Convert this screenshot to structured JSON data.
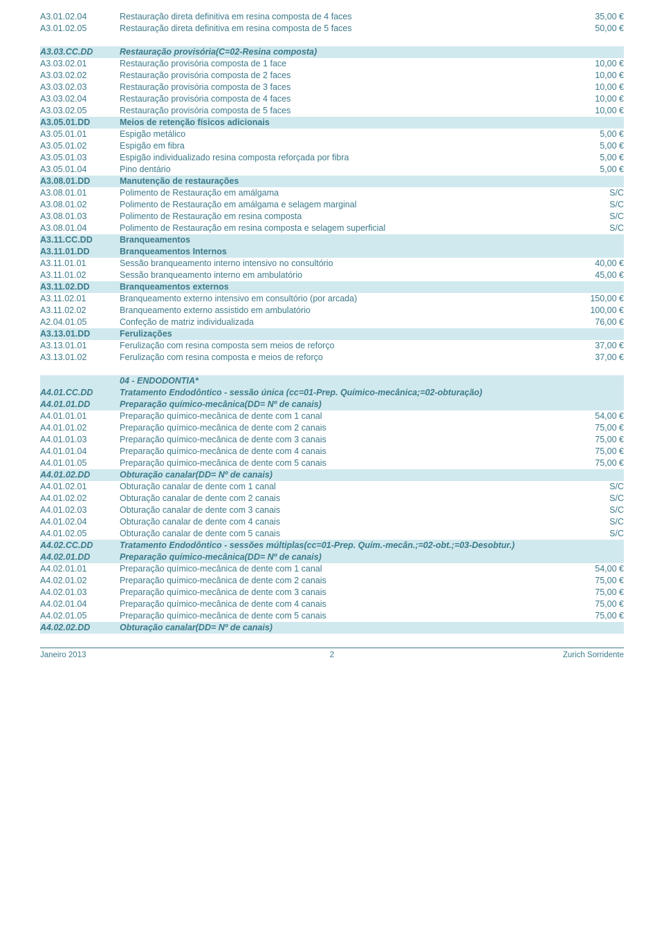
{
  "colors": {
    "text": "#3c7a8a",
    "header_bg": "#d0e9ee",
    "bg": "#ffffff",
    "font_family": "Verdana, Arial, sans-serif",
    "font_size_pt": 9.5
  },
  "blocks": [
    {
      "rows": [
        {
          "style": "",
          "code": "A3.01.02.04",
          "desc": "Restauração direta definitiva em resina composta de 4 faces",
          "price": "35,00 €"
        },
        {
          "style": "",
          "code": "A3.01.02.05",
          "desc": "Restauração direta definitiva em resina composta de 5 faces",
          "price": "50,00 €"
        }
      ]
    },
    {
      "rows": [
        {
          "style": "hdr ital",
          "code": "A3.03.CC.DD",
          "desc": "Restauração provisória(C=02-Resina composta)",
          "price": ""
        },
        {
          "style": "",
          "code": "A3.03.02.01",
          "desc": "Restauração provisória composta de 1 face",
          "price": "10,00 €"
        },
        {
          "style": "",
          "code": "A3.03.02.02",
          "desc": "Restauração provisória composta de 2 faces",
          "price": "10,00 €"
        },
        {
          "style": "",
          "code": "A3.03.02.03",
          "desc": "Restauração provisória composta de 3 faces",
          "price": "10,00 €"
        },
        {
          "style": "",
          "code": "A3.03.02.04",
          "desc": "Restauração provisória composta de 4 faces",
          "price": "10,00 €"
        },
        {
          "style": "",
          "code": "A3.03.02.05",
          "desc": "Restauração provisória composta de 5 faces",
          "price": "10,00 €"
        },
        {
          "style": "hdr",
          "code": "A3.05.01.DD",
          "desc": "Meios de retenção físicos adicionais",
          "price": ""
        },
        {
          "style": "",
          "code": "A3.05.01.01",
          "desc": "Espigão metálico",
          "price": "5,00 €"
        },
        {
          "style": "",
          "code": "A3.05.01.02",
          "desc": "Espigão em fibra",
          "price": "5,00 €"
        },
        {
          "style": "",
          "code": "A3.05.01.03",
          "desc": "Espigão individualizado resina composta reforçada por fibra",
          "price": "5,00 €"
        },
        {
          "style": "",
          "code": "A3.05.01.04",
          "desc": "Pino dentário",
          "price": "5,00 €"
        },
        {
          "style": "hdr",
          "code": "A3.08.01.DD",
          "desc": "Manutenção de restaurações",
          "price": ""
        },
        {
          "style": "",
          "code": "A3.08.01.01",
          "desc": "Polimento de Restauração em amálgama",
          "price": "S/C"
        },
        {
          "style": "",
          "code": "A3.08.01.02",
          "desc": "Polimento de Restauração em amálgama e selagem marginal",
          "price": "S/C"
        },
        {
          "style": "",
          "code": "A3.08.01.03",
          "desc": "Polimento de Restauração em resina composta",
          "price": "S/C"
        },
        {
          "style": "",
          "code": "A3.08.01.04",
          "desc": "Polimento de Restauração em resina composta e selagem superficial",
          "price": "S/C"
        },
        {
          "style": "hdr",
          "code": "A3.11.CC.DD",
          "desc": "Branqueamentos",
          "price": ""
        },
        {
          "style": "hdr",
          "code": "A3.11.01.DD",
          "desc": "Branqueamentos Internos",
          "price": ""
        },
        {
          "style": "",
          "code": "A3.11.01.01",
          "desc": "Sessão branqueamento interno intensivo no consultório",
          "price": "40,00 €"
        },
        {
          "style": "",
          "code": "A3.11.01.02",
          "desc": "Sessão branqueamento interno em ambulatório",
          "price": "45,00 €"
        },
        {
          "style": "hdr",
          "code": "A3.11.02.DD",
          "desc": "Branqueamentos externos",
          "price": ""
        },
        {
          "style": "",
          "code": "A3.11.02.01",
          "desc": "Branqueamento externo intensivo em consultório (por arcada)",
          "price": "150,00 €"
        },
        {
          "style": "",
          "code": "A3.11.02.02",
          "desc": "Branqueamento externo assistido em ambulatório",
          "price": "100,00 €"
        },
        {
          "style": "",
          "code": "A2.04.01.05",
          "desc": "Confeção de matriz individualizada",
          "price": "76,00 €"
        },
        {
          "style": "hdr",
          "code": "A3.13.01.DD",
          "desc": "Ferulizações",
          "price": ""
        },
        {
          "style": "",
          "code": "A3.13.01.01",
          "desc": "Ferulização com resina composta sem meios de reforço",
          "price": "37,00 €"
        },
        {
          "style": "",
          "code": "A3.13.01.02",
          "desc": "Ferulização com resina composta e meios de reforço",
          "price": "37,00 €"
        }
      ]
    },
    {
      "rows": [
        {
          "style": "hdr ital",
          "code": "",
          "desc": "04 - ENDODONTIA*",
          "price": ""
        },
        {
          "style": "hdr ital",
          "code": "A4.01.CC.DD",
          "desc": "Tratamento Endodôntico - sessão única (cc=01-Prep. Químico-mecânica;=02-obturação)",
          "price": ""
        },
        {
          "style": "hdr ital",
          "code": "A4.01.01.DD",
          "desc": "Preparação químico-mecânica(DD= Nº de canais)",
          "price": ""
        },
        {
          "style": "",
          "code": "A4.01.01.01",
          "desc": "Preparação químico-mecânica de dente com 1 canal",
          "price": "54,00 €"
        },
        {
          "style": "",
          "code": "A4.01.01.02",
          "desc": "Preparação químico-mecânica de dente com 2 canais",
          "price": "75,00 €"
        },
        {
          "style": "",
          "code": "A4.01.01.03",
          "desc": "Preparação químico-mecânica de dente com 3 canais",
          "price": "75,00 €"
        },
        {
          "style": "",
          "code": "A4.01.01.04",
          "desc": "Preparação químico-mecânica de dente com 4 canais",
          "price": "75,00 €"
        },
        {
          "style": "",
          "code": "A4.01.01.05",
          "desc": "Preparação químico-mecânica de dente com 5 canais",
          "price": "75,00 €"
        },
        {
          "style": "hdr ital",
          "code": "A4.01.02.DD",
          "desc": "Obturação canalar(DD= Nº de canais)",
          "price": ""
        },
        {
          "style": "",
          "code": "A4.01.02.01",
          "desc": "Obturação canalar de dente com 1 canal",
          "price": "S/C"
        },
        {
          "style": "",
          "code": "A4.01.02.02",
          "desc": "Obturação canalar de dente com 2 canais",
          "price": "S/C"
        },
        {
          "style": "",
          "code": "A4.01.02.03",
          "desc": "Obturação canalar de dente com 3 canais",
          "price": "S/C"
        },
        {
          "style": "",
          "code": "A4.01.02.04",
          "desc": "Obturação canalar de dente com 4 canais",
          "price": "S/C"
        },
        {
          "style": "",
          "code": "A4.01.02.05",
          "desc": "Obturação canalar de dente com 5 canais",
          "price": "S/C"
        },
        {
          "style": "hdr ital",
          "code": "A4.02.CC.DD",
          "desc": "Tratamento Endodôntico - sessões múltiplas(cc=01-Prep. Quím.-mecân.;=02-obt.;=03-Desobtur.)",
          "price": ""
        },
        {
          "style": "hdr ital",
          "code": "A4.02.01.DD",
          "desc": "Preparação químico-mecânica(DD= Nº de canais)",
          "price": ""
        },
        {
          "style": "",
          "code": "A4.02.01.01",
          "desc": "Preparação químico-mecânica de dente com 1 canal",
          "price": "54,00 €"
        },
        {
          "style": "",
          "code": "A4.02.01.02",
          "desc": "Preparação químico-mecânica de dente com 2 canais",
          "price": "75,00 €"
        },
        {
          "style": "",
          "code": "A4.02.01.03",
          "desc": "Preparação químico-mecânica de dente com 3 canais",
          "price": "75,00 €"
        },
        {
          "style": "",
          "code": "A4.02.01.04",
          "desc": "Preparação químico-mecânica de dente com 4 canais",
          "price": "75,00 €"
        },
        {
          "style": "",
          "code": "A4.02.01.05",
          "desc": "Preparação químico-mecânica de dente com 5 canais",
          "price": "75,00 €"
        },
        {
          "style": "hdr ital",
          "code": "A4.02.02.DD",
          "desc": "Obturação canalar(DD= Nº de canais)",
          "price": ""
        }
      ]
    }
  ],
  "footer": {
    "left": "Janeiro 2013",
    "page": "2",
    "right": "Zurich Sorridente"
  }
}
